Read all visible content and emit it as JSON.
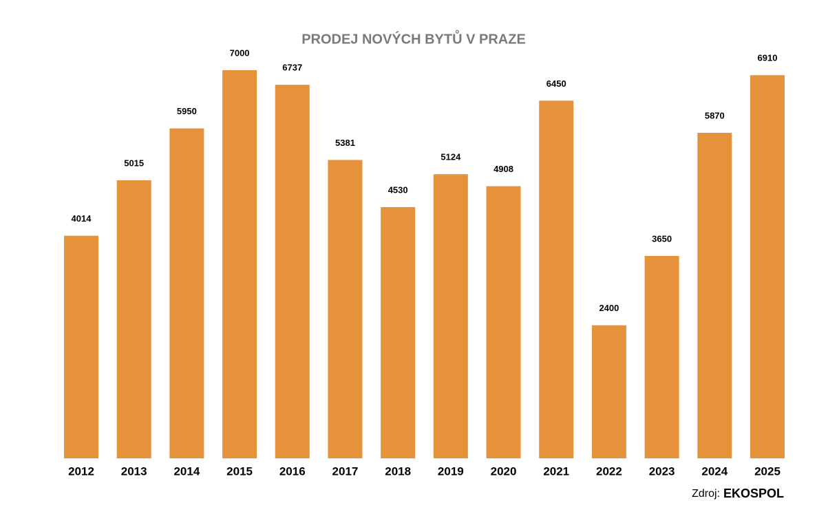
{
  "chart_data": {
    "type": "bar",
    "title": "PRODEJ NOVÝCH BYTŮ V PRAZE",
    "categories": [
      "2012",
      "2013",
      "2014",
      "2015",
      "2016",
      "2017",
      "2018",
      "2019",
      "2020",
      "2021",
      "2022",
      "2023",
      "2024",
      "2025"
    ],
    "values": [
      4014,
      5015,
      5950,
      7000,
      6737,
      5381,
      4530,
      5124,
      4908,
      6450,
      2400,
      3650,
      5870,
      6910
    ],
    "color": "#e5923a",
    "source_label": "Zdroj:",
    "source": "EKOSPOL"
  }
}
